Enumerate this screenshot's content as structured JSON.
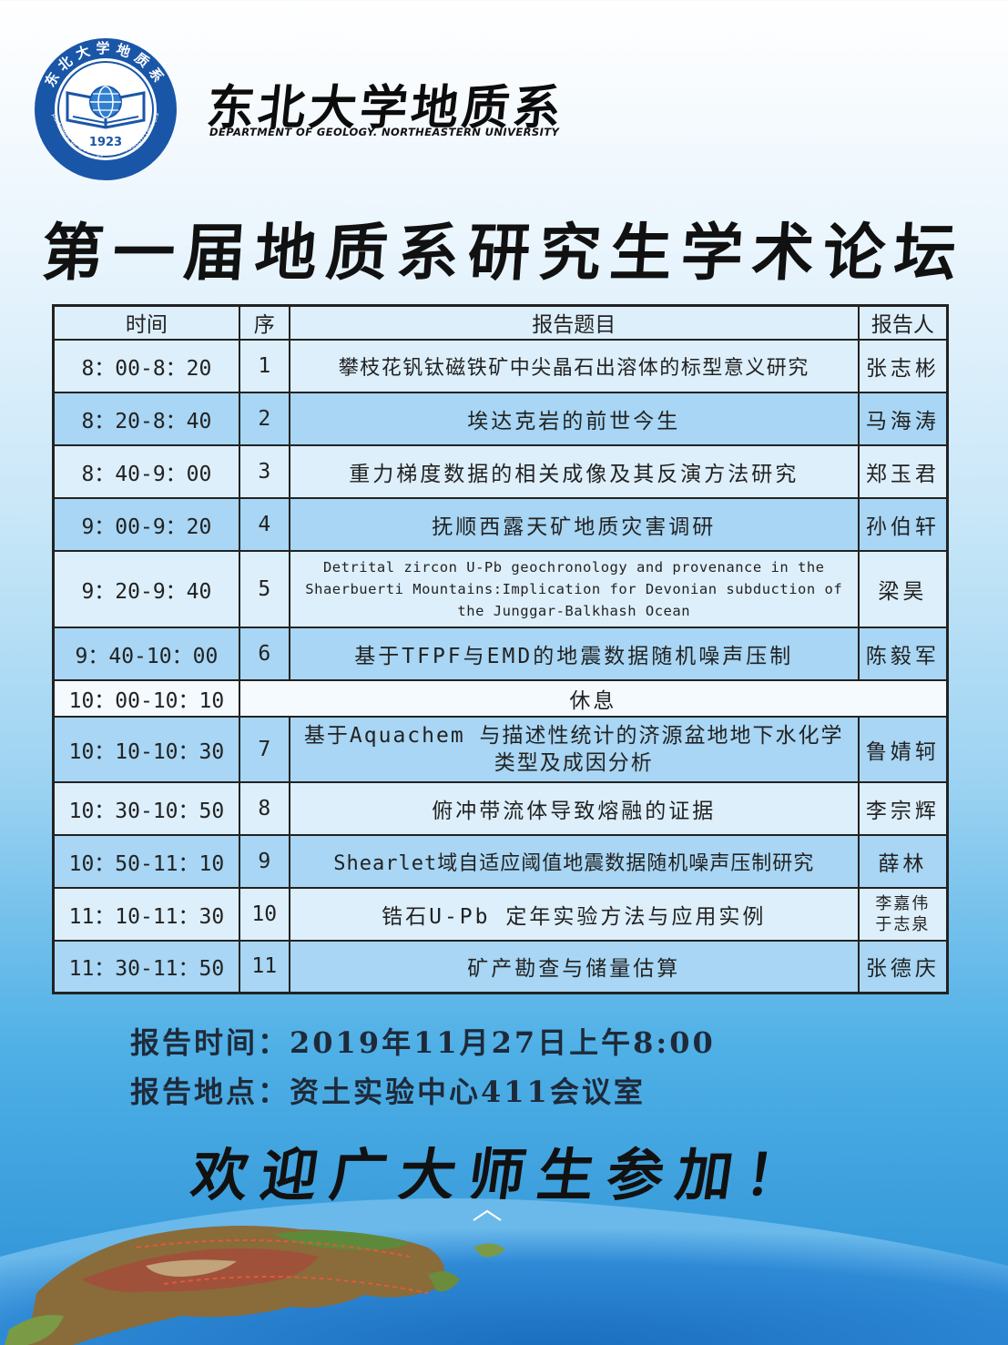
{
  "header": {
    "logo_text": "东北大学地质系",
    "logo_year": "1923",
    "logo_en": "Department of Geology.Northeastern University",
    "name_zh": "东北大学地质系",
    "name_en": "DEPARTMENT OF GEOLOGY. NORTHEASTERN UNIVERSITY"
  },
  "title": "第一届地质系研究生学术论坛",
  "table": {
    "headers": [
      "时间",
      "序",
      "报告题目",
      "报告人"
    ],
    "rows": [
      {
        "time": "8：00-8：20",
        "no": "1",
        "topic": "攀枝花钒钛磁铁矿中尖晶石出溶体的标型意义研究",
        "speaker": "张志彬"
      },
      {
        "time": "8：20-8：40",
        "no": "2",
        "topic": "埃达克岩的前世今生",
        "speaker": "马海涛"
      },
      {
        "time": "8：40-9：00",
        "no": "3",
        "topic": "重力梯度数据的相关成像及其反演方法研究",
        "speaker": "郑玉君"
      },
      {
        "time": "9：00-9：20",
        "no": "4",
        "topic": "抚顺西露天矿地质灾害调研",
        "speaker": "孙伯轩"
      },
      {
        "time": "9：20-9：40",
        "no": "5",
        "topic": "Detrital zircon U-Pb geochronology and provenance in the Shaerbuerti Mountains:Implication for Devonian subduction of the Junggar-Balkhash Ocean",
        "speaker": "梁昊"
      },
      {
        "time": "9：40-10：00",
        "no": "6",
        "topic": "基于TFPF与EMD的地震数据随机噪声压制",
        "speaker": "陈毅军"
      },
      {
        "time": "10：00-10：10",
        "topic": "休息"
      },
      {
        "time": "10：10-10：30",
        "no": "7",
        "topic": "基于Aquachem 与描述性统计的济源盆地地下水化学类型及成因分析",
        "speaker": "鲁婧轲"
      },
      {
        "time": "10：30-10：50",
        "no": "8",
        "topic": "俯冲带流体导致熔融的证据",
        "speaker": "李宗辉"
      },
      {
        "time": "10：50-11：10",
        "no": "9",
        "topic": "Shearlet域自适应阈值地震数据随机噪声压制研究",
        "speaker": "薛林"
      },
      {
        "time": "11：10-11：30",
        "no": "10",
        "topic": "锆石U-Pb 定年实验方法与应用实例",
        "speaker": "李嘉伟",
        "speaker2": "于志泉"
      },
      {
        "time": "11：30-11：50",
        "no": "11",
        "topic": "矿产勘查与储量估算",
        "speaker": "张德庆"
      }
    ]
  },
  "footer": {
    "time_label": "报告时间：",
    "time_value": "2019年11月27日上午8:00",
    "place_label": "报告地点：",
    "place_value": "资土实验中心411会议室",
    "welcome": "欢迎广大师生参加！"
  },
  "colors": {
    "row_dark": "#a8d6f4",
    "row_light": "#ddeffb",
    "logo_blue": "#1a56a8"
  }
}
